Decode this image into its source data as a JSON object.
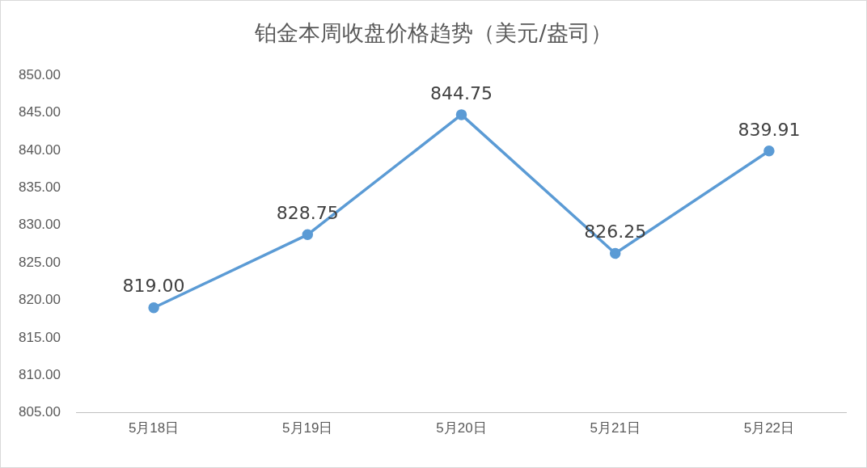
{
  "chart_data": {
    "type": "line",
    "title": "铂金本周收盘价格趋势（美元/盎司）",
    "categories": [
      "5月18日",
      "5月19日",
      "5月20日",
      "5月21日",
      "5月22日"
    ],
    "series": [
      {
        "color": "#5b9bd5",
        "values": [
          819.0,
          828.75,
          844.75,
          826.25,
          839.91
        ]
      }
    ],
    "value_labels": [
      "819.00",
      "828.75",
      "844.75",
      "826.25",
      "839.91"
    ],
    "ylim": [
      805,
      850
    ],
    "yticks": [
      {
        "value": 805,
        "label": "805.00"
      },
      {
        "value": 810,
        "label": "810.00"
      },
      {
        "value": 815,
        "label": "815.00"
      },
      {
        "value": 820,
        "label": "820.00"
      },
      {
        "value": 825,
        "label": "825.00"
      },
      {
        "value": 830,
        "label": "830.00"
      },
      {
        "value": 835,
        "label": "835.00"
      },
      {
        "value": 840,
        "label": "840.00"
      },
      {
        "value": 845,
        "label": "845.00"
      },
      {
        "value": 850,
        "label": "850.00"
      }
    ],
    "grid": false,
    "legend": false,
    "marker": "circle",
    "line_style": "solid"
  }
}
